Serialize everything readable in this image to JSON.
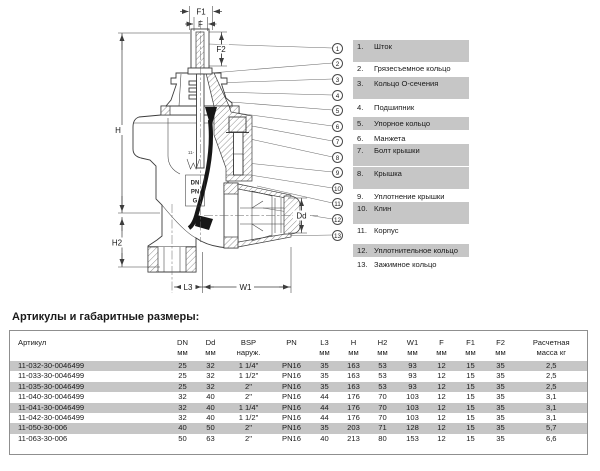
{
  "drawing": {
    "dims": {
      "f1": "F1",
      "f": "F",
      "f2": "F2",
      "h": "H",
      "h2": "H2",
      "l3": "L3",
      "w1": "W1",
      "dd": "Dd"
    },
    "body_marks": {
      "line1": "11-",
      "dn": "DN",
      "pn": "PN",
      "g": "G"
    }
  },
  "parts": {
    "items": [
      {
        "num": "1.",
        "label": "Шток",
        "shaded": true
      },
      {
        "num": "2.",
        "label": "Грязесъемное кольцо",
        "shaded": false
      },
      {
        "num": "3.",
        "label": "Кольцо О-сечения",
        "shaded": true
      },
      {
        "num": "4.",
        "label": "Подшипник",
        "shaded": false
      },
      {
        "num": "5.",
        "label": "Упорное кольцо",
        "shaded": true
      },
      {
        "num": "6.",
        "label": "Манжета",
        "shaded": false
      },
      {
        "num": "7.",
        "label": "Болт крышки",
        "shaded": true
      },
      {
        "num": "8.",
        "label": "Крышка",
        "shaded": true
      },
      {
        "num": "9.",
        "label": "Уплотнение крышки",
        "shaded": false
      },
      {
        "num": "10.",
        "label": "Клин",
        "shaded": true
      },
      {
        "num": "11.",
        "label": "Корпус",
        "shaded": false
      },
      {
        "num": "12.",
        "label": "Уплотнительное кольцо",
        "shaded": true
      },
      {
        "num": "13.",
        "label": "Зажимное кольцо",
        "shaded": false
      }
    ]
  },
  "table": {
    "title": "Артикулы и габаритные размеры:",
    "columns": [
      {
        "label": "Артикул",
        "unit": ""
      },
      {
        "label": "DN",
        "unit": "мм"
      },
      {
        "label": "Dd",
        "unit": "мм"
      },
      {
        "label": "BSP",
        "unit": "наруж."
      },
      {
        "label": "PN",
        "unit": ""
      },
      {
        "label": "L3",
        "unit": "мм"
      },
      {
        "label": "H",
        "unit": "мм"
      },
      {
        "label": "H2",
        "unit": "мм"
      },
      {
        "label": "W1",
        "unit": "мм"
      },
      {
        "label": "F",
        "unit": "мм"
      },
      {
        "label": "F1",
        "unit": "мм"
      },
      {
        "label": "F2",
        "unit": "мм"
      },
      {
        "label": "Расчетная",
        "unit": "масса кг"
      }
    ],
    "rows": [
      [
        "11-032-30-0046499",
        "25",
        "32",
        "1 1/4\"",
        "PN16",
        "35",
        "163",
        "53",
        "93",
        "12",
        "15",
        "35",
        "2,5"
      ],
      [
        "11-033-30-0046499",
        "25",
        "32",
        "1 1/2\"",
        "PN16",
        "35",
        "163",
        "53",
        "93",
        "12",
        "15",
        "35",
        "2,5"
      ],
      [
        "11-035-30-0046499",
        "25",
        "32",
        "2\"",
        "PN16",
        "35",
        "163",
        "53",
        "93",
        "12",
        "15",
        "35",
        "2,5"
      ],
      [
        "11-040-30-0046499",
        "32",
        "40",
        "2\"",
        "PN16",
        "44",
        "176",
        "70",
        "103",
        "12",
        "15",
        "35",
        "3,1"
      ],
      [
        "11-041-30-0046499",
        "32",
        "40",
        "1 1/4\"",
        "PN16",
        "44",
        "176",
        "70",
        "103",
        "12",
        "15",
        "35",
        "3,1"
      ],
      [
        "11-042-30-0046499",
        "32",
        "40",
        "1 1/2\"",
        "PN16",
        "44",
        "176",
        "70",
        "103",
        "12",
        "15",
        "35",
        "3,1"
      ],
      [
        "11-050-30-006",
        "40",
        "50",
        "2\"",
        "PN16",
        "35",
        "203",
        "71",
        "128",
        "12",
        "15",
        "35",
        "5,7"
      ],
      [
        "11-063-30-006",
        "50",
        "63",
        "2\"",
        "PN16",
        "40",
        "213",
        "80",
        "153",
        "12",
        "15",
        "35",
        "6,6"
      ]
    ]
  },
  "colors": {
    "stripe": "#c6c6c6",
    "line": "#3c3c3c"
  }
}
